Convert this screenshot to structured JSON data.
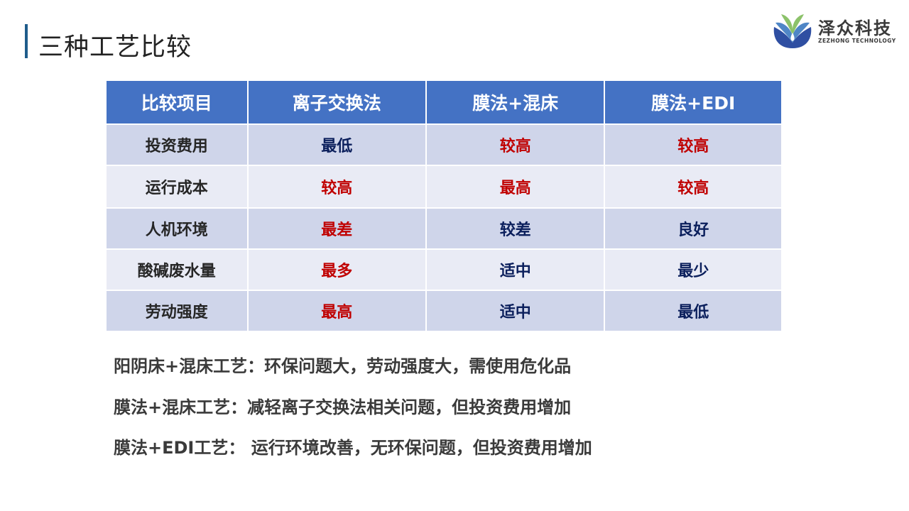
{
  "title": "三种工艺比较",
  "logo": {
    "name_cn": "泽众科技",
    "name_en": "ZEZHONG TECHNOLOGY"
  },
  "colors": {
    "header": "#4472C4",
    "row_odd": "#CFD5EA",
    "row_even": "#E9EBF5",
    "red": "#C00000",
    "navy": "#0B1F5C"
  },
  "table": {
    "headers": [
      "比较项目",
      "离子交换法",
      "膜法+混床",
      "膜法+EDI"
    ],
    "rows": [
      {
        "label": "投资费用",
        "cells": [
          {
            "text": "最低",
            "color": "navy"
          },
          {
            "text": "较高",
            "color": "red"
          },
          {
            "text": "较高",
            "color": "red"
          }
        ]
      },
      {
        "label": "运行成本",
        "cells": [
          {
            "text": "较高",
            "color": "red"
          },
          {
            "text": "最高",
            "color": "red"
          },
          {
            "text": "较高",
            "color": "red"
          }
        ]
      },
      {
        "label": "人机环境",
        "cells": [
          {
            "text": "最差",
            "color": "red"
          },
          {
            "text": "较差",
            "color": "navy"
          },
          {
            "text": "良好",
            "color": "navy"
          }
        ]
      },
      {
        "label": "酸碱废水量",
        "cells": [
          {
            "text": "最多",
            "color": "red"
          },
          {
            "text": "适中",
            "color": "navy"
          },
          {
            "text": "最少",
            "color": "navy"
          }
        ]
      },
      {
        "label": "劳动强度",
        "cells": [
          {
            "text": "最高",
            "color": "red"
          },
          {
            "text": "适中",
            "color": "navy"
          },
          {
            "text": "最低",
            "color": "navy"
          }
        ]
      }
    ]
  },
  "notes": [
    "阳阴床+混床工艺：环保问题大，劳动强度大，需使用危化品",
    "膜法+混床工艺：减轻离子交换法相关问题，但投资费用增加",
    "膜法+EDI工艺： 运行环境改善，无环保问题，但投资费用增加"
  ]
}
